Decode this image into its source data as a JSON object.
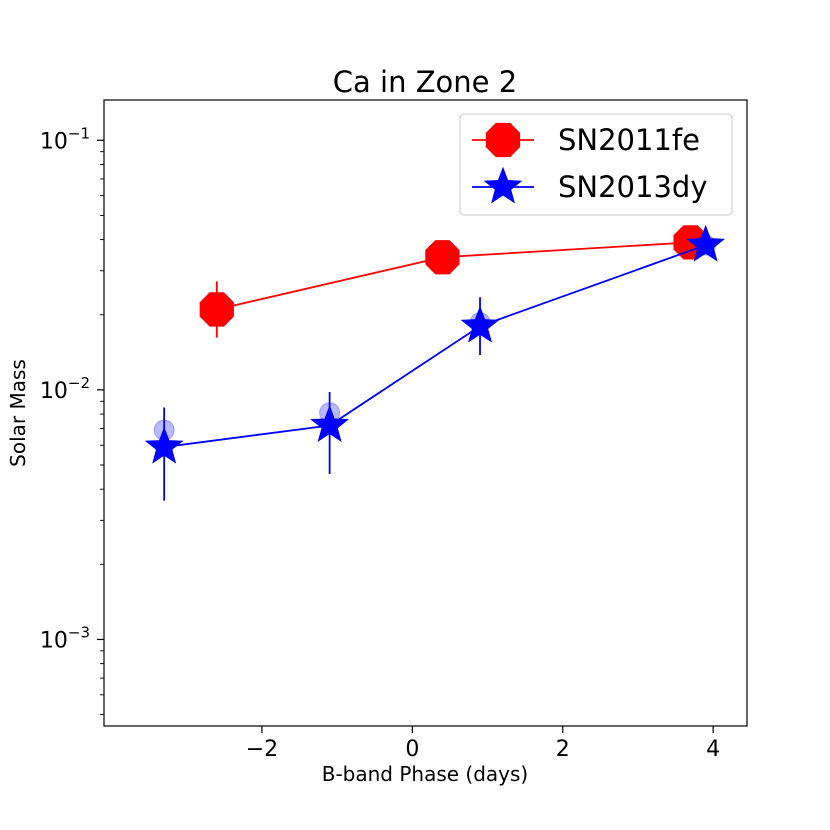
{
  "chart_data": {
    "type": "scatter",
    "title": "Ca in Zone 2",
    "xlabel": "B-band Phase (days)",
    "ylabel": "Solar Mass",
    "xlim": [
      -4.1,
      4.45
    ],
    "ylim": [
      0.00045,
      0.145
    ],
    "yscale": "log",
    "xticks": [
      {
        "value": -2,
        "label": "−2"
      },
      {
        "value": 0,
        "label": "0"
      },
      {
        "value": 2,
        "label": "2"
      },
      {
        "value": 4,
        "label": "4"
      }
    ],
    "yticks": [
      {
        "value": 0.001,
        "base": "10",
        "exp": "−3"
      },
      {
        "value": 0.01,
        "base": "10",
        "exp": "−2"
      },
      {
        "value": 0.1,
        "base": "10",
        "exp": "−1"
      }
    ],
    "legend_position": "top-right",
    "series": [
      {
        "name": "SN2011fe",
        "color": "#ff0000",
        "marker": "octagon",
        "x": [
          -2.6,
          0.4,
          3.7
        ],
        "y": [
          0.021,
          0.034,
          0.039
        ],
        "err_low": [
          0.0162,
          0.0315,
          0.0375
        ],
        "err_high": [
          0.0272,
          0.0365,
          0.0405
        ],
        "shadow_x": [
          -2.6,
          0.4,
          3.7
        ],
        "shadow_y": [
          0.021,
          0.032,
          0.039
        ]
      },
      {
        "name": "SN2013dy",
        "color": "#0000ff",
        "marker": "star",
        "x": [
          -3.3,
          -1.1,
          0.9,
          3.9
        ],
        "y": [
          0.0059,
          0.0072,
          0.018,
          0.038
        ],
        "err_low": [
          0.0036,
          0.0046,
          0.0138,
          0.0355
        ],
        "err_high": [
          0.0085,
          0.0098,
          0.0235,
          0.0405
        ],
        "shadow_x": [
          -3.3,
          -1.1,
          0.9,
          3.9
        ],
        "shadow_y": [
          0.0069,
          0.0081,
          0.0186,
          0.038
        ]
      }
    ]
  }
}
